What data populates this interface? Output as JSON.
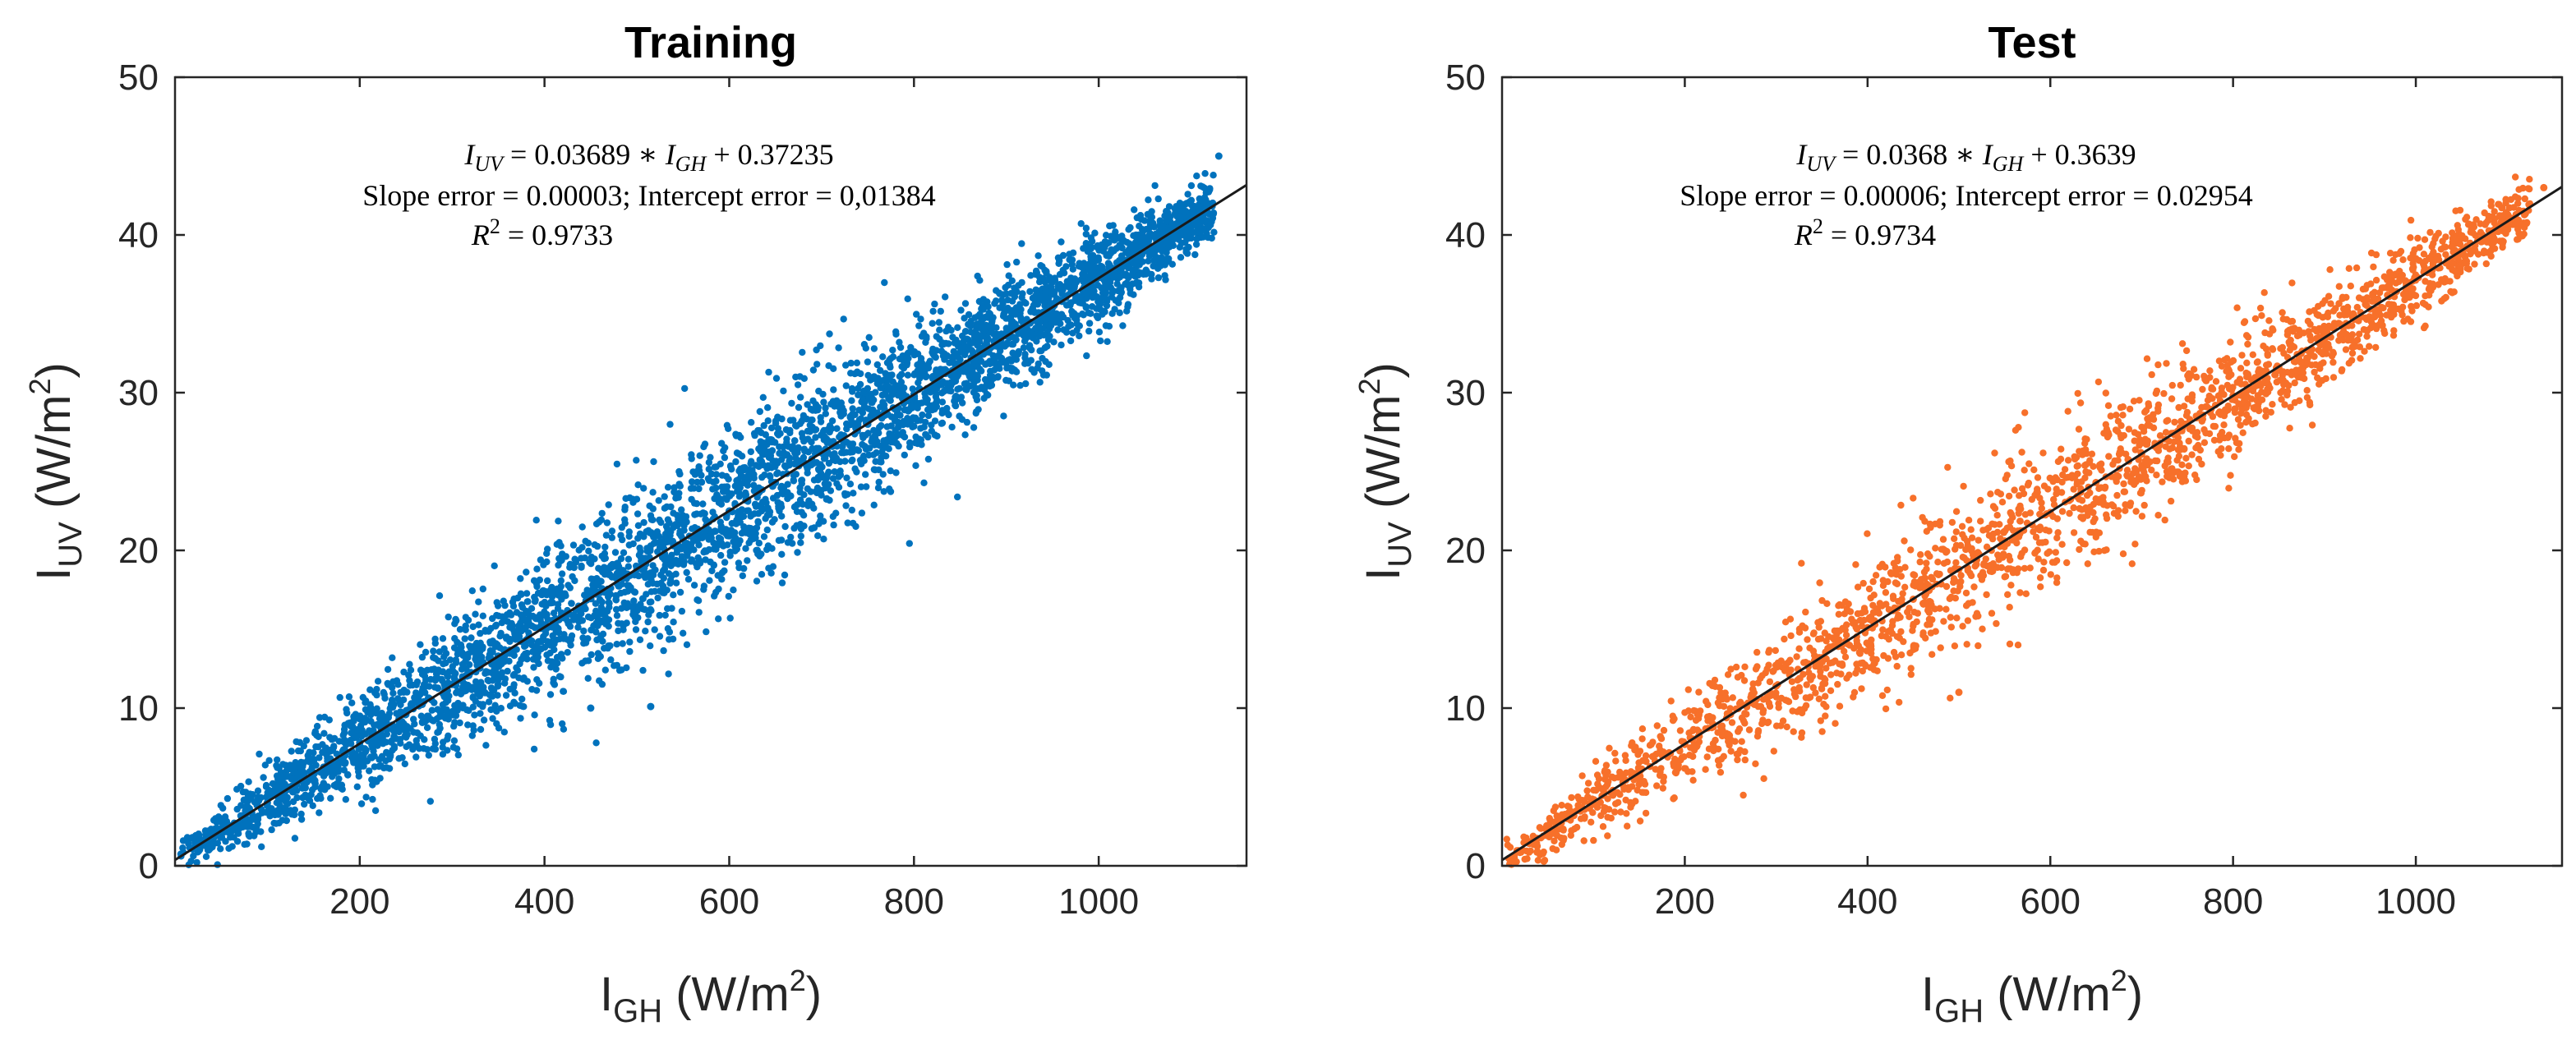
{
  "chart_data": [
    {
      "type": "scatter",
      "title": "Training",
      "xlabel_main": "I",
      "xlabel_sub": "GH",
      "xlabel_unit_pre": " (W/m",
      "xlabel_unit_sup": "2",
      "xlabel_unit_post": ")",
      "ylabel_main": "I",
      "ylabel_sub": "UV",
      "ylabel_unit_pre": " (W/m",
      "ylabel_unit_sup": "2",
      "ylabel_unit_post": ")",
      "xlim": [
        0,
        1160
      ],
      "ylim": [
        0,
        50
      ],
      "xticks": [
        200,
        400,
        600,
        800,
        1000
      ],
      "yticks": [
        0,
        10,
        20,
        30,
        40,
        50
      ],
      "point_color": "#0072BD",
      "fit_line_color": "#1a1a1a",
      "fit": {
        "slope": 0.03689,
        "intercept": 0.37235
      },
      "sample_points": [
        [
          50,
          2.3
        ],
        [
          100,
          4.0
        ],
        [
          150,
          5.9
        ],
        [
          200,
          7.8
        ],
        [
          250,
          9.6
        ],
        [
          300,
          11.5
        ],
        [
          350,
          13.3
        ],
        [
          400,
          15.1
        ],
        [
          450,
          17.0
        ],
        [
          500,
          18.8
        ],
        [
          550,
          20.7
        ],
        [
          600,
          22.5
        ],
        [
          650,
          24.3
        ],
        [
          700,
          26.2
        ],
        [
          750,
          28.0
        ],
        [
          800,
          29.9
        ],
        [
          850,
          31.7
        ],
        [
          900,
          33.6
        ],
        [
          950,
          35.4
        ],
        [
          1000,
          37.3
        ],
        [
          1050,
          39.1
        ],
        [
          1100,
          41.0
        ],
        [
          1130,
          45.0
        ],
        [
          450,
          10.0
        ],
        [
          515,
          10.1
        ]
      ],
      "annotation": {
        "equation": {
          "lhs_var": "I",
          "lhs_sub": "UV",
          "middle": " = 0.03689 ∗ ",
          "rhs_var": "I",
          "rhs_sub": "GH",
          "tail": " + 0.37235"
        },
        "errors": "Slope error = 0.00003; Intercept error = 0,01384",
        "r2": {
          "var": "R",
          "sup": "2",
          "value": " = 0.9733"
        }
      }
    },
    {
      "type": "scatter",
      "title": "Test",
      "xlabel_main": "I",
      "xlabel_sub": "GH",
      "xlabel_unit_pre": " (W/m",
      "xlabel_unit_sup": "2",
      "xlabel_unit_post": ")",
      "ylabel_main": "I",
      "ylabel_sub": "UV",
      "ylabel_unit_pre": " (W/m",
      "ylabel_unit_sup": "2",
      "ylabel_unit_post": ")",
      "xlim": [
        0,
        1160
      ],
      "ylim": [
        0,
        50
      ],
      "xticks": [
        200,
        400,
        600,
        800,
        1000
      ],
      "yticks": [
        0,
        10,
        20,
        30,
        40,
        50
      ],
      "point_color": "#F7702A",
      "fit_line_color": "#1a1a1a",
      "fit": {
        "slope": 0.0368,
        "intercept": 0.3639
      },
      "sample_points": [
        [
          50,
          2.2
        ],
        [
          100,
          4.0
        ],
        [
          150,
          5.9
        ],
        [
          200,
          7.7
        ],
        [
          250,
          9.6
        ],
        [
          300,
          11.4
        ],
        [
          350,
          13.2
        ],
        [
          400,
          15.1
        ],
        [
          450,
          16.9
        ],
        [
          500,
          18.8
        ],
        [
          550,
          20.6
        ],
        [
          600,
          22.4
        ],
        [
          650,
          24.3
        ],
        [
          700,
          26.1
        ],
        [
          750,
          28.0
        ],
        [
          800,
          29.8
        ],
        [
          850,
          31.6
        ],
        [
          900,
          33.5
        ],
        [
          950,
          35.3
        ],
        [
          1000,
          37.2
        ],
        [
          1050,
          39.0
        ],
        [
          1100,
          40.8
        ],
        [
          1140,
          43.0
        ],
        [
          500,
          11.0
        ]
      ],
      "annotation": {
        "equation": {
          "lhs_var": "I",
          "lhs_sub": "UV",
          "middle": " = 0.0368 ∗ ",
          "rhs_var": "I",
          "rhs_sub": "GH",
          "tail": " + 0.3639"
        },
        "errors": "Slope error = 0.00006; Intercept error = 0.02954",
        "r2": {
          "var": "R",
          "sup": "2",
          "value": " = 0.9734"
        }
      }
    }
  ]
}
